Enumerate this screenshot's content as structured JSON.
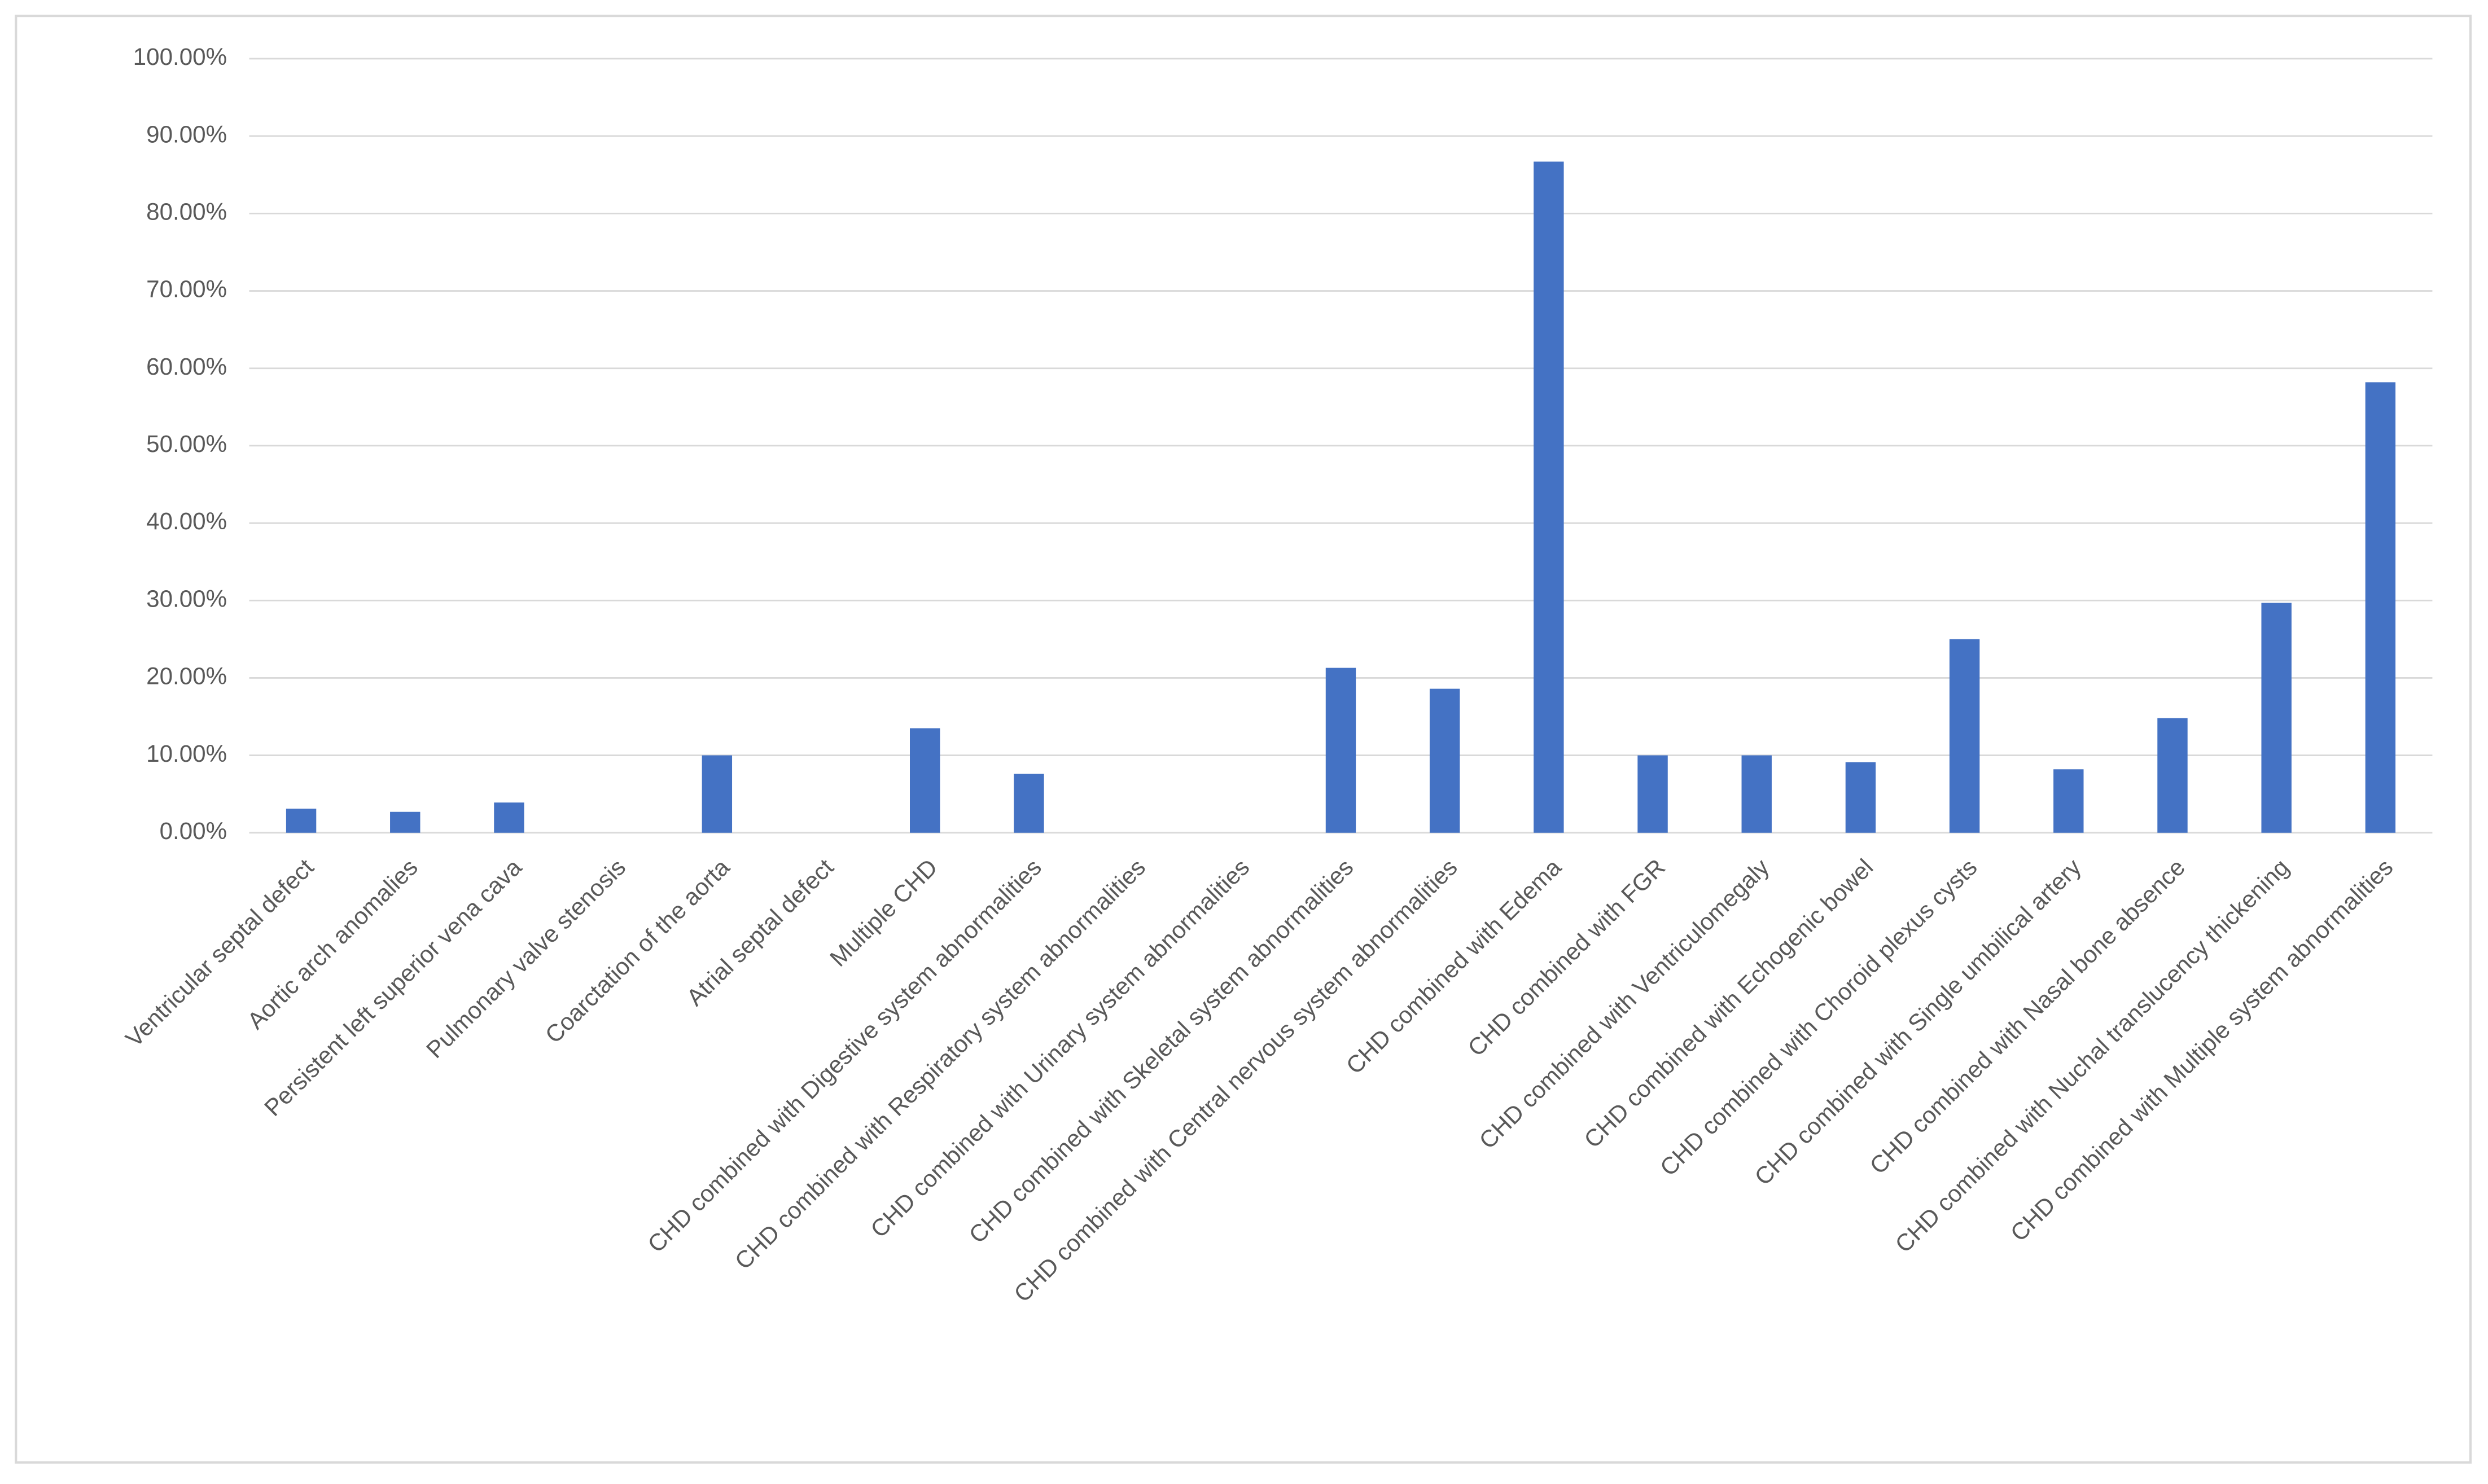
{
  "chart_data": {
    "type": "bar",
    "categories": [
      "Ventricular septal defect",
      "Aortic arch anomalies",
      "Persistent left superior vena cava",
      "Pulmonary valve stenosis",
      "Coarctation of the aorta",
      "Atrial septal defect",
      "Multiple CHD",
      "CHD combined with Digestive system abnormalities",
      "CHD combined with Respiratory system abnormalities",
      "CHD combined with Urinary system abnormalities",
      "CHD combined with Skeletal system abnormalities",
      "CHD combined with Central nervous system abnormalities",
      "CHD combined with Edema",
      "CHD combined with FGR",
      "CHD combined with Ventriculomegaly",
      "CHD combined with Echogenic bowel",
      "CHD combined with Choroid plexus cysts",
      "CHD combined with Single umbilical artery",
      "CHD combined with Nasal bone absence",
      "CHD combined with Nuchal translucency thickening",
      "CHD combined with Multiple system abnormalities"
    ],
    "values": [
      3.1,
      2.7,
      3.9,
      0,
      10.0,
      0,
      13.5,
      7.6,
      0,
      0,
      21.3,
      18.6,
      86.7,
      10.0,
      10.0,
      9.1,
      25.0,
      8.2,
      14.8,
      29.7,
      58.2
    ],
    "color": "#4472c4",
    "ylim": [
      0,
      100
    ],
    "yticks": [
      {
        "value": 0,
        "label": "0.00%"
      },
      {
        "value": 10,
        "label": "10.00%"
      },
      {
        "value": 20,
        "label": "20.00%"
      },
      {
        "value": 30,
        "label": "30.00%"
      },
      {
        "value": 40,
        "label": "40.00%"
      },
      {
        "value": 50,
        "label": "50.00%"
      },
      {
        "value": 60,
        "label": "60.00%"
      },
      {
        "value": 70,
        "label": "70.00%"
      },
      {
        "value": 80,
        "label": "80.00%"
      },
      {
        "value": 90,
        "label": "90.00%"
      },
      {
        "value": 100,
        "label": "100.00%"
      }
    ],
    "grid": true
  }
}
